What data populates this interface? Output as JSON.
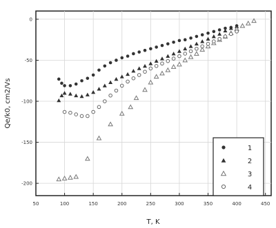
{
  "chart_data": {
    "type": "scatter",
    "xlabel": "T, K",
    "ylabel": "Qe/k0, cm2/Vs",
    "xlim": [
      50,
      460
    ],
    "ylim": [
      -215,
      10
    ],
    "grid": true,
    "legend_position": "bottom-right",
    "x_ticks": [
      "50",
      "100",
      "150",
      "200",
      "250",
      "300",
      "350",
      "400",
      "450"
    ],
    "y_ticks": [
      "0",
      "-50",
      "-100",
      "-150",
      "-200"
    ],
    "series": [
      {
        "name": "1",
        "marker": "circle-filled",
        "points": [
          [
            90,
            -73
          ],
          [
            95,
            -78
          ],
          [
            100,
            -81
          ],
          [
            110,
            -81
          ],
          [
            120,
            -79
          ],
          [
            130,
            -75
          ],
          [
            140,
            -72
          ],
          [
            150,
            -68
          ],
          [
            160,
            -62
          ],
          [
            170,
            -57
          ],
          [
            180,
            -53
          ],
          [
            190,
            -50
          ],
          [
            200,
            -47
          ],
          [
            210,
            -45
          ],
          [
            220,
            -42
          ],
          [
            230,
            -40
          ],
          [
            240,
            -38
          ],
          [
            250,
            -36
          ],
          [
            260,
            -34
          ],
          [
            270,
            -32
          ],
          [
            280,
            -30
          ],
          [
            290,
            -28
          ],
          [
            300,
            -26
          ],
          [
            310,
            -25
          ],
          [
            320,
            -23
          ],
          [
            330,
            -21
          ],
          [
            340,
            -19
          ],
          [
            350,
            -17
          ],
          [
            360,
            -15
          ],
          [
            370,
            -13
          ],
          [
            380,
            -11
          ],
          [
            390,
            -10
          ],
          [
            400,
            -8
          ]
        ]
      },
      {
        "name": "2",
        "marker": "triangle-filled",
        "points": [
          [
            90,
            -99
          ],
          [
            95,
            -93
          ],
          [
            100,
            -90
          ],
          [
            110,
            -91
          ],
          [
            120,
            -93
          ],
          [
            130,
            -94
          ],
          [
            140,
            -92
          ],
          [
            150,
            -89
          ],
          [
            160,
            -85
          ],
          [
            170,
            -81
          ],
          [
            180,
            -77
          ],
          [
            190,
            -73
          ],
          [
            200,
            -70
          ],
          [
            210,
            -67
          ],
          [
            220,
            -63
          ],
          [
            230,
            -60
          ],
          [
            240,
            -57
          ],
          [
            250,
            -54
          ],
          [
            260,
            -51
          ],
          [
            270,
            -48
          ],
          [
            280,
            -45
          ],
          [
            290,
            -42
          ],
          [
            300,
            -39
          ],
          [
            310,
            -36
          ],
          [
            320,
            -33
          ],
          [
            330,
            -30
          ],
          [
            340,
            -27
          ],
          [
            350,
            -24
          ],
          [
            360,
            -21
          ],
          [
            370,
            -18
          ],
          [
            380,
            -14
          ],
          [
            390,
            -11
          ],
          [
            400,
            -9
          ]
        ]
      },
      {
        "name": "3",
        "marker": "triangle-open",
        "points": [
          [
            90,
            -195
          ],
          [
            100,
            -194
          ],
          [
            110,
            -193
          ],
          [
            120,
            -192
          ],
          [
            140,
            -170
          ],
          [
            160,
            -145
          ],
          [
            180,
            -128
          ],
          [
            200,
            -115
          ],
          [
            215,
            -107
          ],
          [
            225,
            -96
          ],
          [
            240,
            -86
          ],
          [
            250,
            -77
          ],
          [
            260,
            -70
          ],
          [
            270,
            -66
          ],
          [
            280,
            -62
          ],
          [
            290,
            -58
          ],
          [
            300,
            -55
          ],
          [
            310,
            -50
          ],
          [
            320,
            -46
          ],
          [
            330,
            -42
          ],
          [
            340,
            -37
          ],
          [
            350,
            -33
          ],
          [
            360,
            -29
          ],
          [
            370,
            -25
          ],
          [
            380,
            -21
          ],
          [
            390,
            -17
          ],
          [
            400,
            -12
          ],
          [
            410,
            -8
          ],
          [
            420,
            -5
          ],
          [
            430,
            -2
          ]
        ]
      },
      {
        "name": "4",
        "marker": "circle-open",
        "points": [
          [
            100,
            -113
          ],
          [
            110,
            -114
          ],
          [
            120,
            -116
          ],
          [
            130,
            -118
          ],
          [
            140,
            -118
          ],
          [
            150,
            -113
          ],
          [
            160,
            -107
          ],
          [
            170,
            -100
          ],
          [
            180,
            -93
          ],
          [
            190,
            -87
          ],
          [
            200,
            -81
          ],
          [
            210,
            -76
          ],
          [
            220,
            -72
          ],
          [
            230,
            -68
          ],
          [
            240,
            -64
          ],
          [
            250,
            -60
          ],
          [
            260,
            -57
          ],
          [
            270,
            -54
          ],
          [
            280,
            -51
          ],
          [
            290,
            -48
          ],
          [
            300,
            -45
          ],
          [
            310,
            -42
          ],
          [
            320,
            -39
          ],
          [
            330,
            -36
          ],
          [
            340,
            -33
          ],
          [
            350,
            -30
          ],
          [
            360,
            -27
          ],
          [
            370,
            -24
          ],
          [
            380,
            -21
          ],
          [
            390,
            -18
          ],
          [
            400,
            -15
          ]
        ]
      }
    ]
  }
}
